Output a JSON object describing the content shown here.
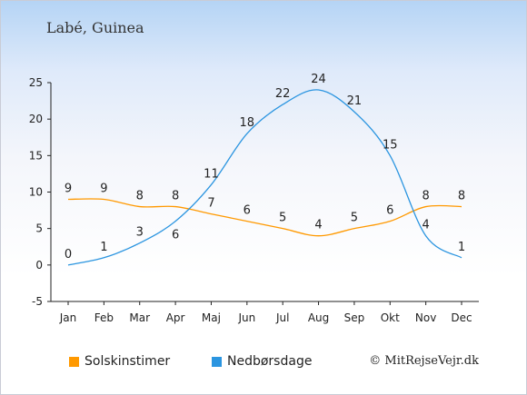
{
  "page": {
    "location": "Labé, Guinea",
    "copyright": "© MitRejseVejr.dk"
  },
  "chart_data": {
    "type": "line",
    "title": "",
    "categories": [
      "Jan",
      "Feb",
      "Mar",
      "Apr",
      "Maj",
      "Jun",
      "Jul",
      "Aug",
      "Sep",
      "Okt",
      "Nov",
      "Dec"
    ],
    "ylim": [
      -5,
      25
    ],
    "yticks": [
      -5,
      0,
      5,
      10,
      15,
      20,
      25
    ],
    "grid": false,
    "legend_position": "bottom-left",
    "series": [
      {
        "name": "Solskinstimer",
        "color": "#ff9900",
        "values": [
          9,
          9,
          8,
          8,
          7,
          6,
          5,
          4,
          5,
          6,
          8,
          8
        ]
      },
      {
        "name": "Nedbørsdage",
        "color": "#2b95e0",
        "values": [
          0,
          1,
          3,
          6,
          11,
          18,
          22,
          24,
          21,
          15,
          4,
          1
        ]
      }
    ]
  }
}
